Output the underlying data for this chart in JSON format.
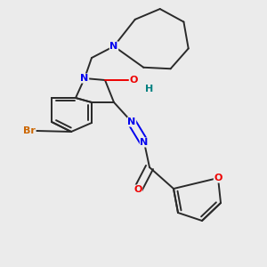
{
  "bg_color": "#ebebeb",
  "bond_color": "#2a2a2a",
  "atom_colors": {
    "N": "#0000ee",
    "O": "#ee0000",
    "Br": "#cc6600",
    "H": "#008080",
    "C": "#2a2a2a"
  }
}
